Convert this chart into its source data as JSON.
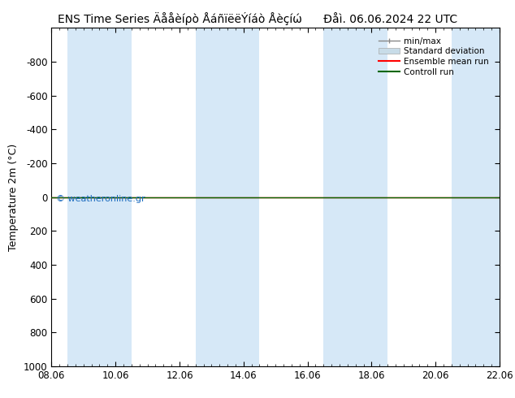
{
  "title_left": "ENS Time Series Äååèíρò ÅáñïëëÝíáò Åèçíώ",
  "title_right": "Ðåì. 06.06.2024 22 UTC",
  "ylabel": "Temperature 2m (°C)",
  "ylim_top": -1000,
  "ylim_bottom": 1000,
  "yticks": [
    -800,
    -600,
    -400,
    -200,
    0,
    200,
    400,
    600,
    800,
    1000
  ],
  "xtick_labels": [
    "08.06",
    "10.06",
    "12.06",
    "14.06",
    "16.06",
    "18.06",
    "20.06",
    "22.06"
  ],
  "xmin": 0.0,
  "xmax": 14.0,
  "shade_bands": [
    [
      0.5,
      2.5
    ],
    [
      4.5,
      6.5
    ],
    [
      8.5,
      10.5
    ],
    [
      12.5,
      14.0
    ]
  ],
  "shade_color": "#d6e8f7",
  "background_color": "#ffffff",
  "line_y": 0,
  "ensemble_mean_color": "#ff0000",
  "control_run_color": "#006600",
  "minmax_color": "#888888",
  "std_dev_color": "#c8dce8",
  "watermark": "© weatheronline.gr",
  "watermark_color": "#1a6bbf",
  "legend_entries": [
    "min/max",
    "Standard deviation",
    "Ensemble mean run",
    "Controll run"
  ],
  "title_fontsize": 10,
  "axis_fontsize": 9,
  "tick_fontsize": 8.5
}
